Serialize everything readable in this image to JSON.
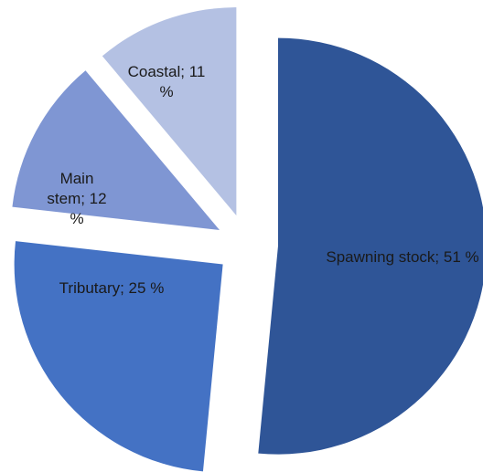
{
  "chart_data": {
    "type": "pie",
    "values": [
      51,
      25,
      12,
      11
    ],
    "value_labels": [
      "Spawning stock; 51 %",
      "Tributary; 25 %",
      "Main stem; 12 %",
      "Coastal; 11 %"
    ],
    "colors": [
      "#2f5597",
      "#4472c4",
      "#7f96d3",
      "#b4c1e3"
    ],
    "exploded": true
  }
}
